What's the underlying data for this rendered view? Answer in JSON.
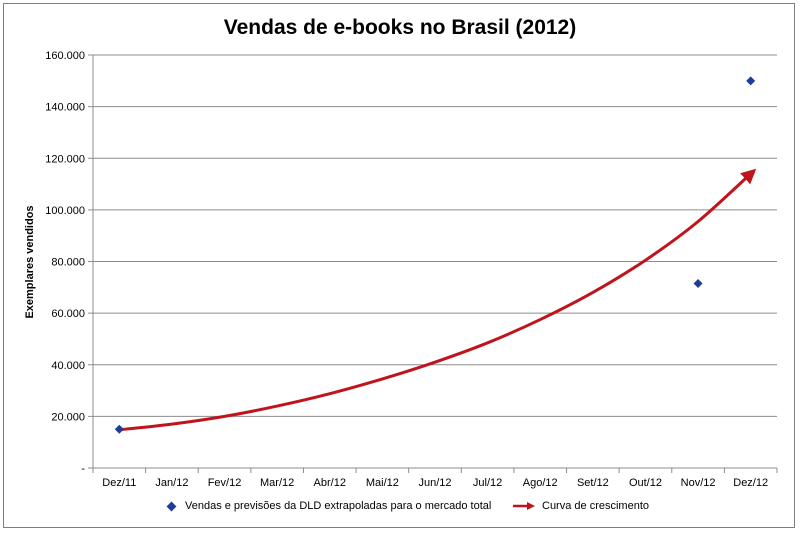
{
  "chart_data": {
    "type": "scatter",
    "title": "Vendas de e-books no Brasil (2012)",
    "xlabel": "",
    "ylabel": "Exemplares vendidos",
    "categories": [
      "Dez/11",
      "Jan/12",
      "Fev/12",
      "Mar/12",
      "Abr/12",
      "Mai/12",
      "Jun/12",
      "Jul/12",
      "Ago/12",
      "Set/12",
      "Out/12",
      "Nov/12",
      "Dez/12"
    ],
    "y_ticks": [
      "-",
      "20.000",
      "40.000",
      "60.000",
      "80.000",
      "100.000",
      "120.000",
      "140.000",
      "160.000"
    ],
    "ylim": [
      0,
      160000
    ],
    "grid": true,
    "legend_position": "bottom",
    "series": [
      {
        "name": "Vendas e previsões da DLD extrapoladas para o mercado total",
        "kind": "markers",
        "marker": "diamond",
        "color": "#1f3c99",
        "points": [
          {
            "x": "Dez/11",
            "y": 15000
          },
          {
            "x": "Nov/12",
            "y": 71500
          },
          {
            "x": "Dez/12",
            "y": 150000
          }
        ]
      },
      {
        "name": "Curva de crescimento",
        "kind": "curve-arrow",
        "color": "#c0141c",
        "points": [
          {
            "x": "Dez/11",
            "y": 14800
          },
          {
            "x": "Jan/12",
            "y": 17000
          },
          {
            "x": "Fev/12",
            "y": 20000
          },
          {
            "x": "Mar/12",
            "y": 24000
          },
          {
            "x": "Abr/12",
            "y": 28800
          },
          {
            "x": "Mai/12",
            "y": 34500
          },
          {
            "x": "Jun/12",
            "y": 41000
          },
          {
            "x": "Jul/12",
            "y": 48500
          },
          {
            "x": "Ago/12",
            "y": 57500
          },
          {
            "x": "Set/12",
            "y": 68000
          },
          {
            "x": "Out/12",
            "y": 80500
          },
          {
            "x": "Nov/12",
            "y": 95500
          },
          {
            "x": "Dez/12",
            "y": 114000
          }
        ]
      }
    ]
  }
}
